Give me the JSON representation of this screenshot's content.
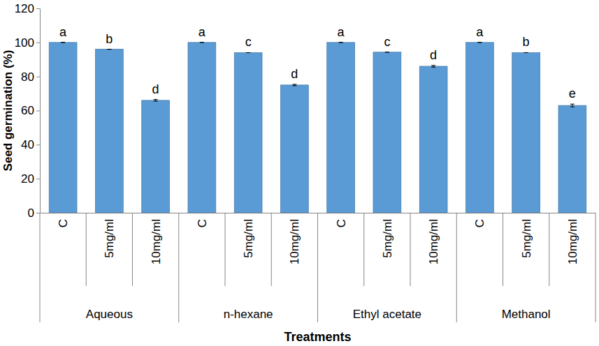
{
  "chart_data": {
    "type": "bar",
    "categories": [
      "C",
      "5mg/ml",
      "10mg/ml",
      "C",
      "5mg/ml",
      "10mg/ml",
      "C",
      "5mg/ml",
      "10mg/ml",
      "C",
      "5mg/ml",
      "10mg/ml"
    ],
    "groups": [
      "Aqueous",
      "Aqueous",
      "Aqueous",
      "n-hexane",
      "n-hexane",
      "n-hexane",
      "Ethyl acetate",
      "Ethyl acetate",
      "Ethyl acetate",
      "Methanol",
      "Methanol",
      "Methanol"
    ],
    "values": [
      100,
      96,
      66,
      100,
      94,
      75,
      100,
      94.3,
      86,
      100,
      94,
      63
    ],
    "errors": [
      0,
      0,
      0.5,
      0,
      0,
      0.4,
      0,
      0,
      0.5,
      0,
      0,
      0.8
    ],
    "annotations": [
      "a",
      "b",
      "d",
      "a",
      "c",
      "d",
      "a",
      "c",
      "d",
      "a",
      "b",
      "e"
    ],
    "x_label": "Treatments",
    "y_label": "Seed germination (%)",
    "color": "#5b9bd5",
    "ylim": [
      0,
      120
    ],
    "yticks": [
      0,
      20,
      40,
      60,
      80,
      100,
      120
    ],
    "grid": false
  }
}
